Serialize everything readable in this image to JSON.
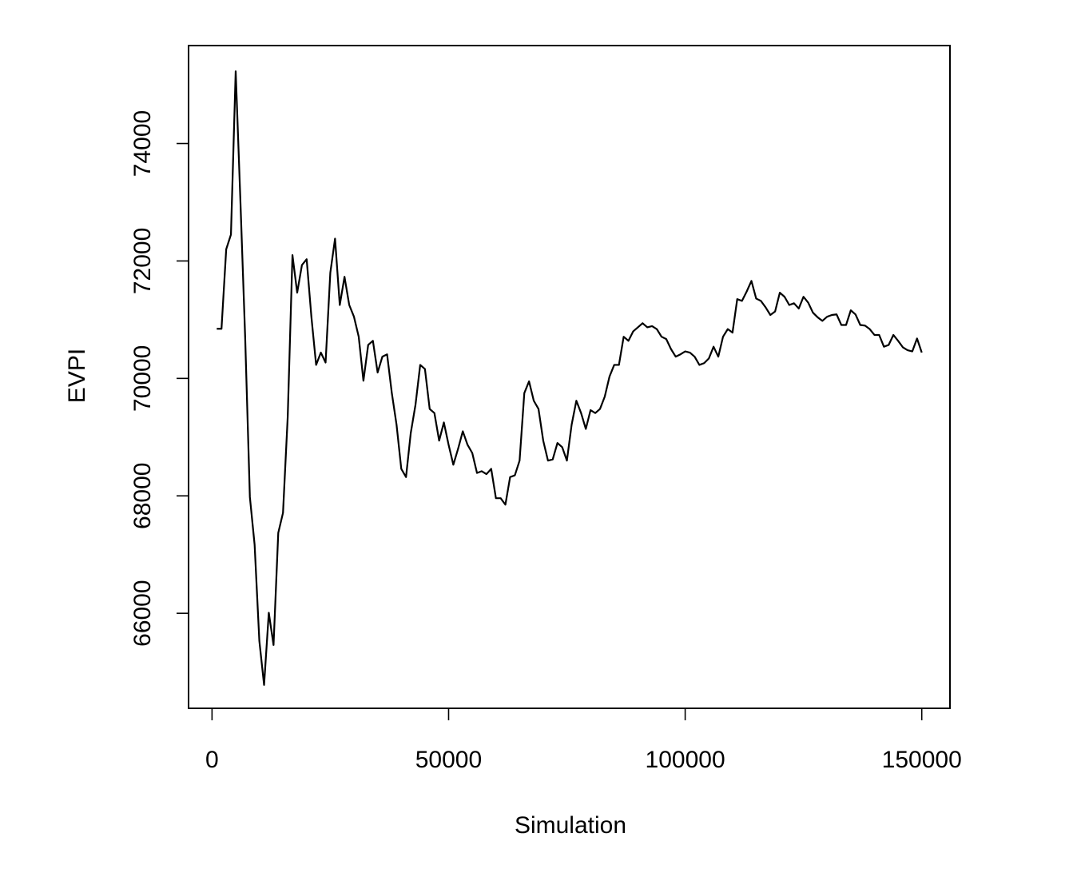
{
  "chart_data": {
    "type": "line",
    "xlabel": "Simulation",
    "ylabel": "EVPI",
    "color": "#000000",
    "x": [
      1000,
      2000,
      3000,
      4000,
      5000,
      6000,
      7000,
      8000,
      9000,
      10000,
      11000,
      12000,
      13000,
      14000,
      15000,
      16000,
      17000,
      18000,
      19000,
      20000,
      21000,
      22000,
      23000,
      24000,
      25000,
      26000,
      27000,
      28000,
      29000,
      30000,
      31000,
      32000,
      33000,
      34000,
      35000,
      36000,
      37000,
      38000,
      39000,
      40000,
      41000,
      42000,
      43000,
      44000,
      45000,
      46000,
      47000,
      48000,
      49000,
      50000,
      51000,
      52000,
      53000,
      54000,
      55000,
      56000,
      57000,
      58000,
      59000,
      60000,
      61000,
      62000,
      63000,
      64000,
      65000,
      66000,
      67000,
      68000,
      69000,
      70000,
      71000,
      72000,
      73000,
      74000,
      75000,
      76000,
      77000,
      78000,
      79000,
      80000,
      81000,
      82000,
      83000,
      84000,
      85000,
      86000,
      87000,
      88000,
      89000,
      90000,
      91000,
      92000,
      93000,
      94000,
      95000,
      96000,
      97000,
      98000,
      99000,
      100000,
      101000,
      102000,
      103000,
      104000,
      105000,
      106000,
      107000,
      108000,
      109000,
      110000,
      111000,
      112000,
      113000,
      114000,
      115000,
      116000,
      117000,
      118000,
      119000,
      120000,
      121000,
      122000,
      123000,
      124000,
      125000,
      126000,
      127000,
      128000,
      129000,
      130000,
      131000,
      132000,
      133000,
      134000,
      135000,
      136000,
      137000,
      138000,
      139000,
      140000,
      141000,
      142000,
      143000,
      144000,
      145000,
      146000,
      147000,
      148000,
      149000,
      150000
    ],
    "values": [
      70845,
      70845,
      72200,
      72450,
      75230,
      73020,
      70710,
      67980,
      67170,
      65530,
      64780,
      66010,
      65460,
      67370,
      67710,
      69350,
      72100,
      71460,
      71930,
      72030,
      71050,
      70230,
      70440,
      70270,
      71800,
      72380,
      71250,
      71730,
      71250,
      71050,
      70710,
      69960,
      70570,
      70640,
      70100,
      70370,
      70410,
      69750,
      69210,
      68460,
      68320,
      69070,
      69550,
      70230,
      70160,
      69480,
      69410,
      68940,
      69250,
      68870,
      68530,
      68800,
      69100,
      68870,
      68730,
      68390,
      68420,
      68370,
      68460,
      67960,
      67960,
      67850,
      68320,
      68350,
      68600,
      69750,
      69950,
      69620,
      69480,
      68940,
      68600,
      68620,
      68900,
      68830,
      68600,
      69210,
      69620,
      69410,
      69140,
      69460,
      69410,
      69480,
      69690,
      70030,
      70230,
      70230,
      70710,
      70640,
      70800,
      70870,
      70940,
      70870,
      70890,
      70840,
      70710,
      70670,
      70500,
      70370,
      70410,
      70460,
      70440,
      70370,
      70230,
      70260,
      70340,
      70540,
      70370,
      70710,
      70840,
      70780,
      71350,
      71320,
      71480,
      71660,
      71360,
      71320,
      71210,
      71080,
      71140,
      71460,
      71390,
      71250,
      71280,
      71190,
      71390,
      71290,
      71120,
      71040,
      70980,
      71050,
      71080,
      71090,
      70910,
      70910,
      71160,
      71090,
      70910,
      70900,
      70840,
      70740,
      70740,
      70540,
      70570,
      70740,
      70640,
      70530,
      70480,
      70460,
      70680,
      70440
    ],
    "xlim": [
      -4960,
      155960
    ],
    "ylim": [
      64382,
      75668
    ],
    "xticks": [
      0,
      50000,
      100000,
      150000
    ],
    "yticks": [
      66000,
      68000,
      70000,
      72000,
      74000
    ]
  }
}
